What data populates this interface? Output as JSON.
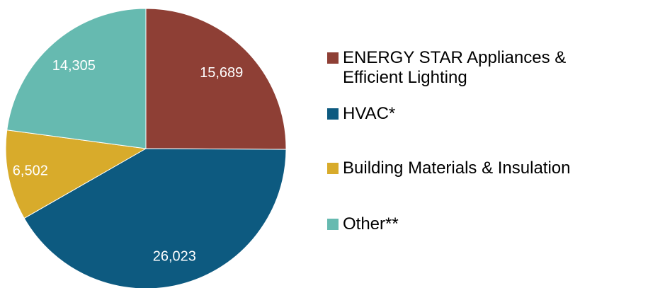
{
  "chart_data": {
    "type": "pie",
    "title": "",
    "categories": [
      "ENERGY STAR Appliances & Efficient Lighting",
      "HVAC*",
      "Building Materials & Insulation",
      "Other**"
    ],
    "values": [
      15689,
      26023,
      6502,
      14305
    ],
    "value_labels": [
      "15,689",
      "26,023",
      "6,502",
      "14,305"
    ],
    "colors": [
      "#8E3F35",
      "#0D5A80",
      "#D8AB2B",
      "#66BAB0"
    ],
    "start_angle": "12 o'clock",
    "direction": "clockwise",
    "legend_position": "right"
  },
  "legend": {
    "items": [
      {
        "label": "ENERGY STAR Appliances &\nEfficient Lighting",
        "color": "#8E3F35"
      },
      {
        "label": "HVAC*",
        "color": "#0D5A80"
      },
      {
        "label": "Building Materials & Insulation",
        "color": "#D8AB2B"
      },
      {
        "label": "Other**",
        "color": "#66BAB0"
      }
    ]
  }
}
